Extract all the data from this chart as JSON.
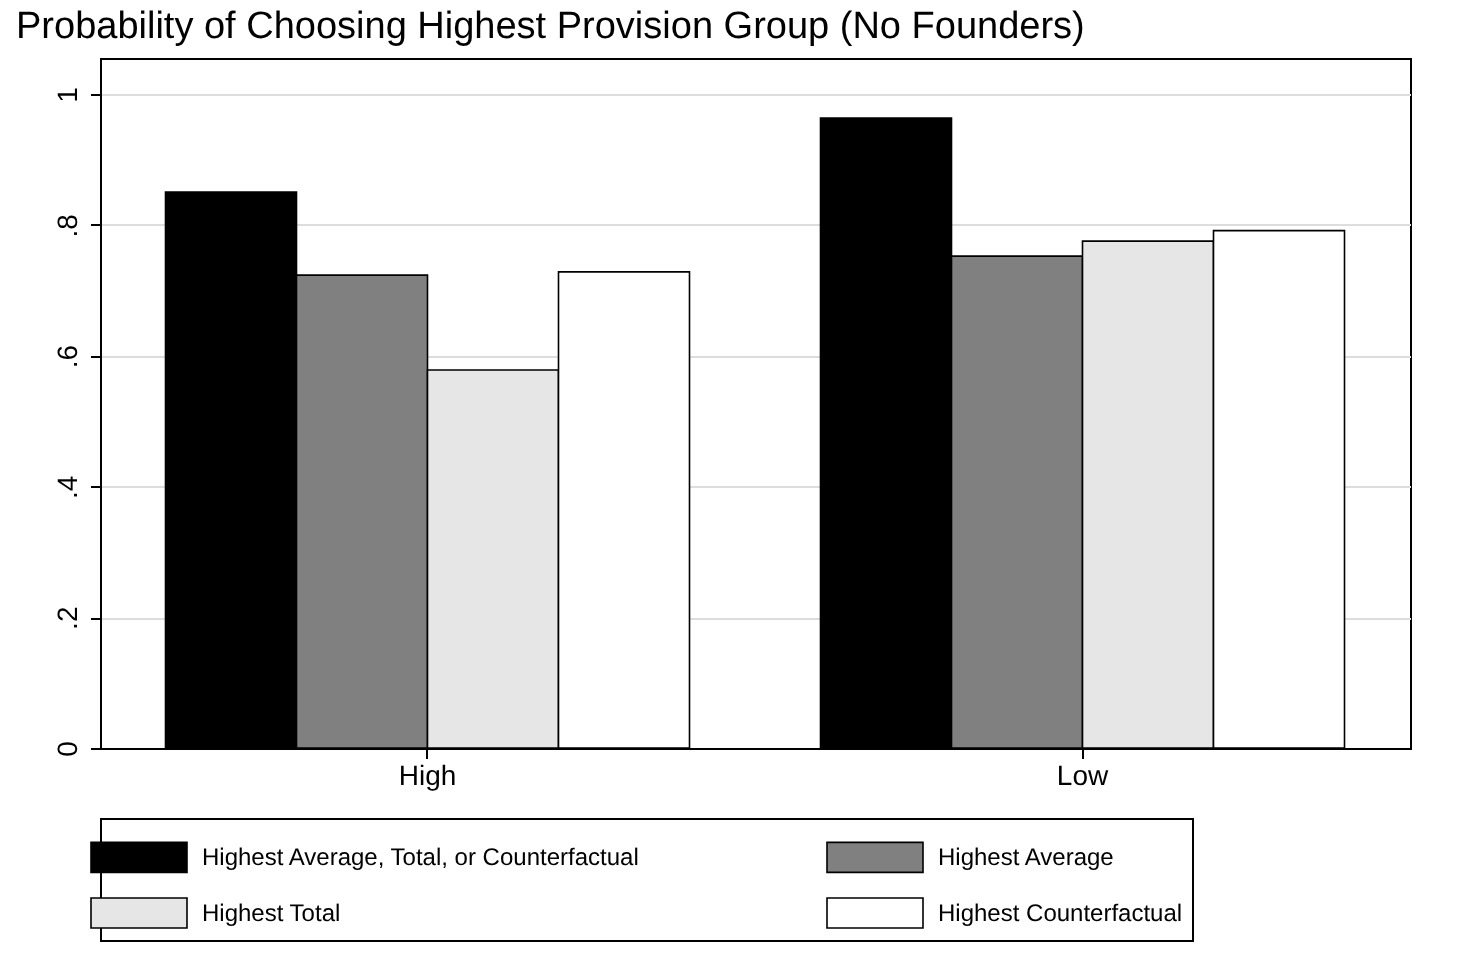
{
  "chart_data": {
    "type": "bar",
    "title": "Probability of Choosing Highest Provision Group (No Founders)",
    "categories": [
      "High",
      "Low"
    ],
    "series": [
      {
        "name": "Highest Average, Total, or Counterfactual",
        "color": "#000000",
        "values": [
          0.85,
          0.963
        ]
      },
      {
        "name": "Highest Average",
        "color": "#808080",
        "values": [
          0.723,
          0.752
        ]
      },
      {
        "name": "Highest Total",
        "color": "#e6e6e6",
        "values": [
          0.578,
          0.775
        ]
      },
      {
        "name": "Highest Counterfactual",
        "color": "#ffffff",
        "values": [
          0.728,
          0.791
        ]
      }
    ],
    "ylim": [
      0,
      1.055
    ],
    "yticks": [
      {
        "value": 0,
        "label": "0"
      },
      {
        "value": 0.2,
        "label": ".2"
      },
      {
        "value": 0.4,
        "label": ".4"
      },
      {
        "value": 0.6,
        "label": ".6"
      },
      {
        "value": 0.8,
        "label": ".8"
      },
      {
        "value": 1,
        "label": "1"
      }
    ],
    "grid": "y",
    "legend": "bottom"
  }
}
